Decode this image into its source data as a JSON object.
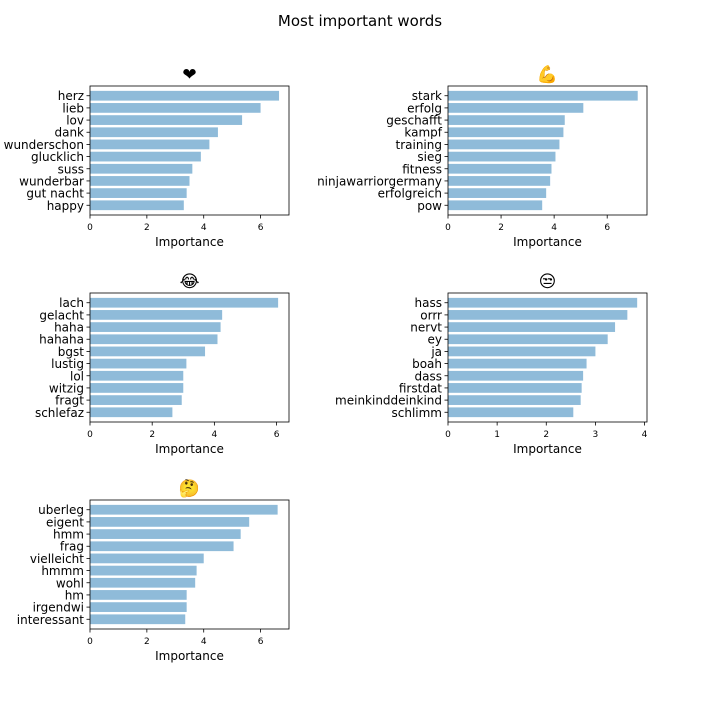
{
  "figure": {
    "title": "Most important words"
  },
  "chart_data": [
    {
      "type": "bar",
      "orientation": "horizontal",
      "title": "❤",
      "title_icon": "heart-emoji",
      "xlabel": "Importance",
      "ylabel": "",
      "xlim": [
        0,
        7.0
      ],
      "xticks": [
        0,
        2,
        4,
        6
      ],
      "grid": false,
      "categories": [
        "herz",
        "lieb",
        "lov",
        "dank",
        "wunderschon",
        "glucklich",
        "suss",
        "wunderbar",
        "gut nacht",
        "happy"
      ],
      "values": [
        6.65,
        6.0,
        5.35,
        4.5,
        4.2,
        3.9,
        3.6,
        3.5,
        3.4,
        3.3
      ],
      "bar_color": "#8fbbd9"
    },
    {
      "type": "bar",
      "orientation": "horizontal",
      "title": "💪",
      "title_icon": "flexed-biceps-emoji",
      "xlabel": "Importance",
      "ylabel": "",
      "xlim": [
        0,
        7.5
      ],
      "xticks": [
        0,
        2,
        4,
        6
      ],
      "grid": false,
      "categories": [
        "stark",
        "erfolg",
        "geschafft",
        "kampf",
        "training",
        "sieg",
        "fitness",
        "ninjawarriorgermany",
        "erfolgreich",
        "pow"
      ],
      "values": [
        7.15,
        5.1,
        4.4,
        4.35,
        4.2,
        4.05,
        3.9,
        3.85,
        3.7,
        3.55
      ],
      "bar_color": "#8fbbd9"
    },
    {
      "type": "bar",
      "orientation": "horizontal",
      "title": "😂",
      "title_icon": "face-with-tears-of-joy-emoji",
      "xlabel": "Importance",
      "ylabel": "",
      "xlim": [
        0,
        6.4
      ],
      "xticks": [
        0,
        2,
        4,
        6
      ],
      "grid": false,
      "categories": [
        "lach",
        "gelacht",
        "haha",
        "hahaha",
        "bgst",
        "lustig",
        "lol",
        "witzig",
        "fragt",
        "schlefaz"
      ],
      "values": [
        6.05,
        4.25,
        4.2,
        4.1,
        3.7,
        3.1,
        3.0,
        3.0,
        2.95,
        2.65
      ],
      "bar_color": "#8fbbd9"
    },
    {
      "type": "bar",
      "orientation": "horizontal",
      "title": "😒",
      "title_icon": "unamused-face-emoji",
      "xlabel": "Importance",
      "ylabel": "",
      "xlim": [
        0,
        4.05
      ],
      "xticks": [
        0,
        1,
        2,
        3,
        4
      ],
      "grid": false,
      "categories": [
        "hass",
        "orrr",
        "nervt",
        "ey",
        "ja",
        "boah",
        "dass",
        "firstdat",
        "meinkinddeinkind",
        "schlimm"
      ],
      "values": [
        3.85,
        3.65,
        3.4,
        3.25,
        3.0,
        2.82,
        2.75,
        2.72,
        2.7,
        2.55
      ],
      "bar_color": "#8fbbd9"
    },
    {
      "type": "bar",
      "orientation": "horizontal",
      "title": "🤔",
      "title_icon": "thinking-face-emoji",
      "xlabel": "Importance",
      "ylabel": "",
      "xlim": [
        0,
        7.0
      ],
      "xticks": [
        0,
        2,
        4,
        6
      ],
      "grid": false,
      "categories": [
        "uberleg",
        "eigent",
        "hmm",
        "frag",
        "vielleicht",
        "hmmm",
        "wohl",
        "hm",
        "irgendwi",
        "interessant"
      ],
      "values": [
        6.6,
        5.6,
        5.3,
        5.05,
        4.0,
        3.75,
        3.7,
        3.4,
        3.4,
        3.35
      ],
      "bar_color": "#8fbbd9"
    }
  ]
}
